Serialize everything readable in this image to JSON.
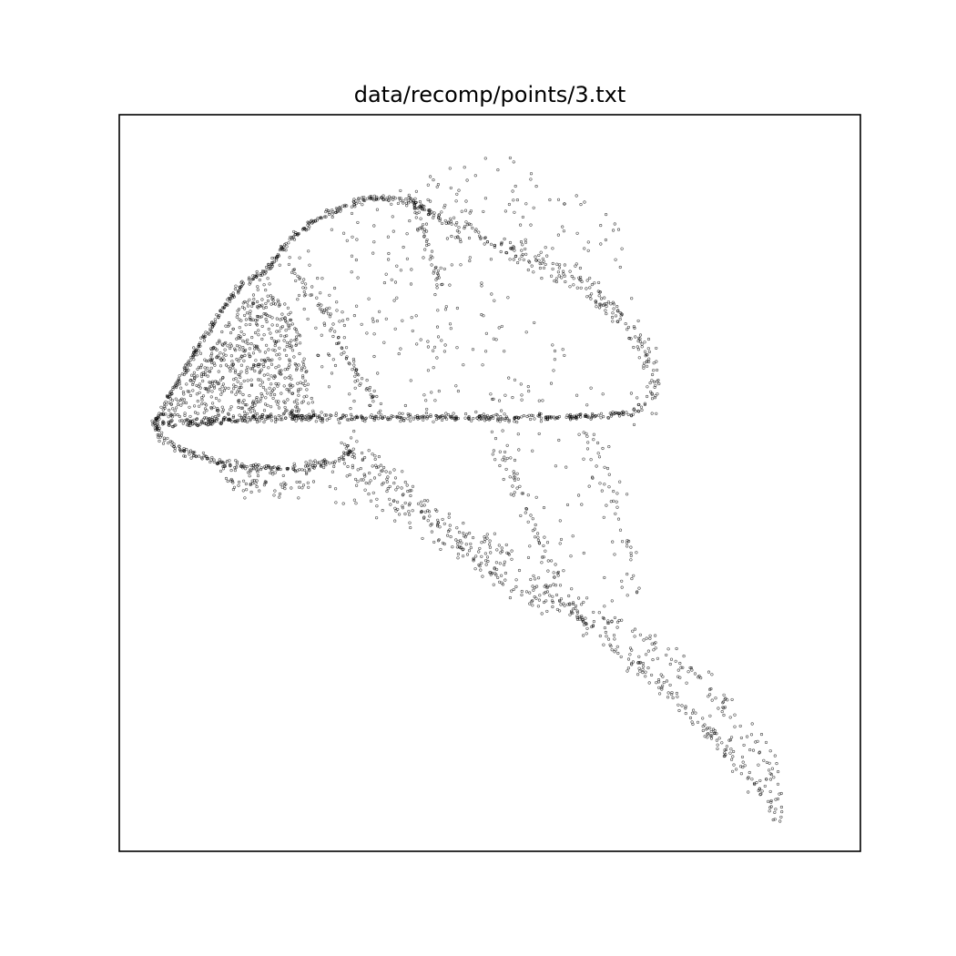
{
  "chart_data": {
    "type": "scatter",
    "title": "data/recomp/points/3.txt",
    "xlabel": "",
    "ylabel": "",
    "axes_ticks_visible": false,
    "grid": false,
    "legend": "none",
    "xlim": [
      0,
      100
    ],
    "ylim": [
      0,
      100
    ],
    "marker_color": "#000000",
    "marker_style": "hollow",
    "structures": [
      {
        "kind": "curve",
        "spread": 0.25,
        "density": 7,
        "points": [
          [
            4.6,
            57.9
          ],
          [
            6.5,
            61.2
          ],
          [
            10.0,
            67.3
          ],
          [
            13.3,
            72.7
          ],
          [
            16.3,
            76.7
          ],
          [
            18.2,
            78.1
          ],
          [
            19.6,
            78.5
          ]
        ]
      },
      {
        "kind": "curve",
        "spread": 0.25,
        "density": 7,
        "points": [
          [
            19.6,
            78.5
          ],
          [
            23.0,
            83.1
          ],
          [
            27.0,
            86.0
          ],
          [
            33.0,
            88.6
          ],
          [
            36.6,
            88.7
          ],
          [
            40.6,
            87.7
          ],
          [
            44.0,
            85.4
          ]
        ]
      },
      {
        "kind": "curve",
        "spread": 0.8,
        "density": 5,
        "points": [
          [
            44.0,
            85.4
          ],
          [
            50.0,
            82.6
          ],
          [
            56.0,
            80.4
          ],
          [
            62.0,
            77.3
          ],
          [
            67.0,
            73.2
          ],
          [
            70.3,
            69.2
          ],
          [
            72.3,
            64.4
          ],
          [
            71.7,
            61.2
          ],
          [
            69.3,
            59.5
          ]
        ]
      },
      {
        "kind": "curve",
        "spread": 0.25,
        "density": 7,
        "points": [
          [
            4.6,
            57.9
          ],
          [
            20.0,
            58.9
          ],
          [
            40.0,
            58.9
          ],
          [
            60.0,
            58.9
          ],
          [
            69.3,
            59.5
          ]
        ]
      },
      {
        "kind": "curve",
        "spread": 0.3,
        "density": 7,
        "points": [
          [
            4.6,
            57.9
          ],
          [
            6.0,
            55.9
          ],
          [
            9.0,
            54.2
          ],
          [
            14.0,
            52.6
          ],
          [
            20.0,
            51.8
          ],
          [
            24.0,
            52.0
          ],
          [
            29.0,
            52.8
          ],
          [
            31.5,
            54.4
          ]
        ]
      },
      {
        "kind": "curve",
        "spread": 0.9,
        "density": 4,
        "points": [
          [
            14.0,
            50.6
          ],
          [
            18.0,
            49.4
          ],
          [
            22.0,
            49.3
          ],
          [
            26.0,
            49.7
          ]
        ]
      },
      {
        "kind": "curve",
        "spread": 0.9,
        "density": 4,
        "points": [
          [
            30.0,
            56.3
          ],
          [
            34.0,
            52.5
          ],
          [
            38.0,
            49.2
          ],
          [
            42.0,
            46.0
          ],
          [
            46.0,
            42.1
          ],
          [
            50.0,
            38.2
          ],
          [
            54.0,
            35.4
          ],
          [
            58.0,
            33.0
          ]
        ]
      },
      {
        "kind": "curve",
        "spread": 1.2,
        "density": 3,
        "points": [
          [
            30.0,
            52.0
          ],
          [
            35.0,
            49.2
          ],
          [
            40.0,
            45.6
          ],
          [
            45.0,
            42.8
          ],
          [
            50.0,
            41.4
          ],
          [
            55.0,
            39.0
          ]
        ]
      },
      {
        "kind": "curve",
        "spread": 0.6,
        "density": 4,
        "points": [
          [
            55.0,
            37.5
          ],
          [
            60.0,
            33.0
          ],
          [
            65.0,
            29.3
          ],
          [
            70.0,
            25.2
          ],
          [
            75.0,
            20.7
          ],
          [
            80.0,
            15.6
          ],
          [
            84.0,
            11.0
          ],
          [
            87.0,
            7.9
          ],
          [
            89.3,
            5.1
          ]
        ]
      },
      {
        "kind": "curve",
        "spread": 1.1,
        "density": 3,
        "points": [
          [
            65.0,
            32.0
          ],
          [
            70.0,
            29.5
          ],
          [
            75.0,
            26.0
          ],
          [
            80.0,
            21.5
          ],
          [
            84.0,
            16.7
          ],
          [
            87.5,
            11.5
          ],
          [
            89.3,
            6.2
          ]
        ]
      },
      {
        "kind": "curve",
        "spread": 1.0,
        "density": 3,
        "points": [
          [
            51.0,
            57.9
          ],
          [
            53.0,
            50.2
          ],
          [
            56.0,
            43.0
          ],
          [
            59.0,
            37.0
          ],
          [
            63.0,
            31.0
          ]
        ]
      },
      {
        "kind": "curve",
        "spread": 1.3,
        "density": 2,
        "points": [
          [
            62.0,
            57.9
          ],
          [
            65.0,
            52.0
          ],
          [
            67.5,
            45.0
          ],
          [
            69.3,
            38.5
          ],
          [
            69.3,
            33.3
          ]
        ]
      },
      {
        "kind": "curve",
        "spread": 0.5,
        "density": 3,
        "points": [
          [
            38.8,
            89.7
          ],
          [
            40.8,
            84.5
          ],
          [
            42.6,
            79.5
          ],
          [
            44.0,
            75.0
          ]
        ]
      },
      {
        "kind": "curve",
        "spread": 0.5,
        "density": 3,
        "points": [
          [
            23.0,
            80.0
          ],
          [
            27.5,
            72.8
          ],
          [
            32.0,
            65.0
          ],
          [
            35.5,
            59.0
          ]
        ]
      },
      {
        "kind": "region",
        "density": 650,
        "points": [
          [
            4.6,
            57.9
          ],
          [
            19.6,
            78.5
          ],
          [
            24.0,
            72.0
          ],
          [
            26.5,
            58.9
          ],
          [
            15.0,
            57.7
          ]
        ]
      },
      {
        "kind": "region",
        "density": 210,
        "points": [
          [
            19.6,
            78.5
          ],
          [
            33.0,
            88.6
          ],
          [
            44.0,
            85.4
          ],
          [
            56.0,
            72.0
          ],
          [
            69.3,
            59.5
          ],
          [
            30.0,
            58.9
          ]
        ]
      },
      {
        "kind": "region",
        "density": 110,
        "points": [
          [
            36.0,
            89.5
          ],
          [
            41.5,
            93.0
          ],
          [
            51.5,
            95.3
          ],
          [
            67.0,
            86.0
          ],
          [
            72.3,
            69.2
          ],
          [
            60.0,
            76.0
          ],
          [
            44.0,
            85.4
          ]
        ]
      },
      {
        "kind": "region",
        "density": 55,
        "points": [
          [
            7.0,
            55.0
          ],
          [
            24.0,
            51.5
          ],
          [
            34.0,
            52.0
          ],
          [
            44.0,
            47.0
          ],
          [
            56.0,
            38.5
          ],
          [
            52.0,
            36.0
          ],
          [
            42.0,
            42.0
          ],
          [
            30.0,
            47.0
          ],
          [
            22.0,
            49.0
          ],
          [
            14.0,
            50.5
          ]
        ]
      },
      {
        "kind": "region",
        "density": 35,
        "points": [
          [
            50.0,
            57.9
          ],
          [
            68.0,
            57.9
          ],
          [
            69.8,
            42.0
          ],
          [
            69.5,
            33.5
          ],
          [
            62.0,
            31.0
          ],
          [
            56.0,
            40.0
          ]
        ]
      },
      {
        "kind": "region",
        "density": 25,
        "points": [
          [
            54.0,
            37.0
          ],
          [
            70.0,
            30.0
          ],
          [
            83.0,
            19.5
          ],
          [
            90.0,
            6.5
          ],
          [
            86.0,
            8.5
          ],
          [
            78.0,
            17.0
          ],
          [
            66.0,
            27.0
          ]
        ]
      }
    ]
  }
}
